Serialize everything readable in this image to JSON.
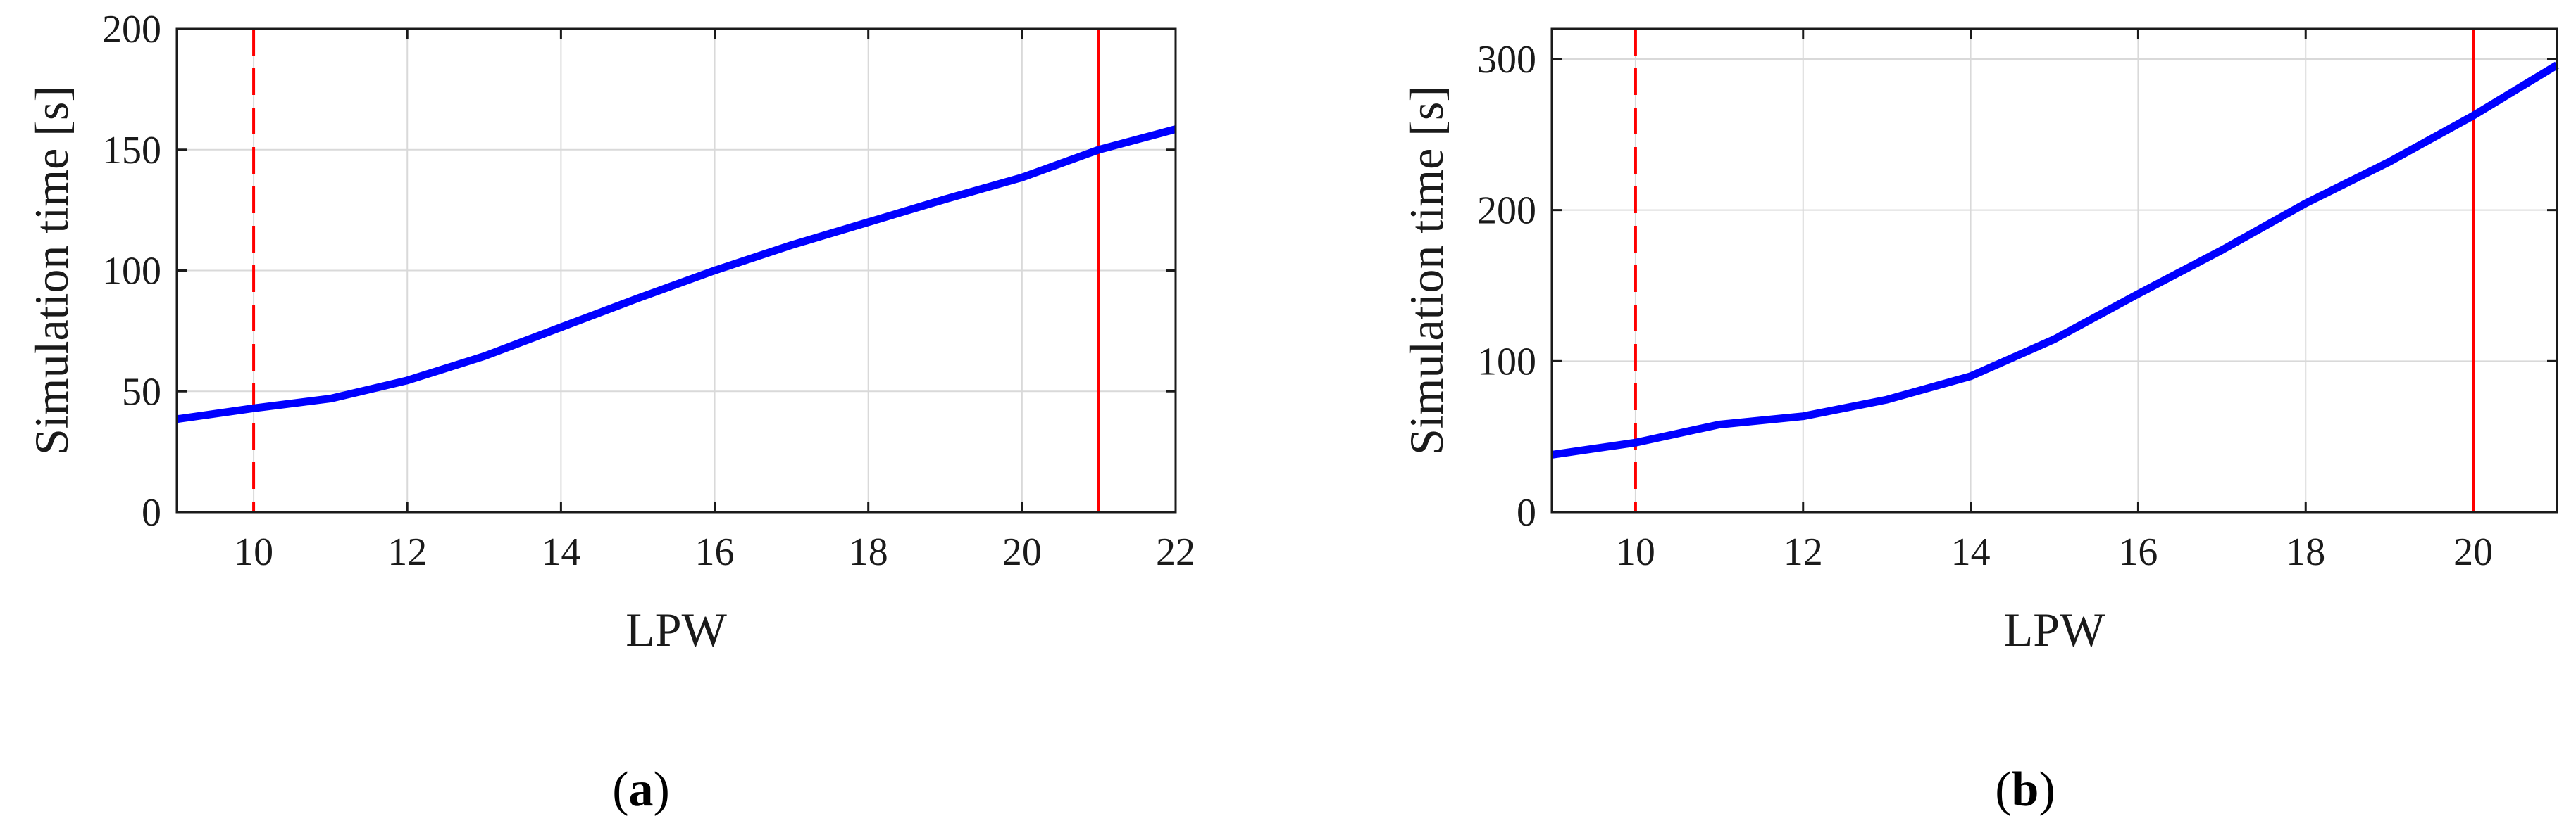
{
  "chart_data": [
    {
      "type": "line",
      "panel_label": "a",
      "xlabel": "LPW",
      "ylabel": "Simulation time [s]",
      "xlim": [
        9,
        22
      ],
      "ylim": [
        0,
        200
      ],
      "xticks": [
        10,
        12,
        14,
        16,
        18,
        20,
        22
      ],
      "yticks": [
        0,
        50,
        100,
        150,
        200
      ],
      "grid": true,
      "series": [
        {
          "color": "#0000ff",
          "x": [
            9,
            10,
            11,
            12,
            13,
            14,
            15,
            16,
            17,
            18,
            19,
            20,
            21,
            22
          ],
          "y": [
            38.5,
            43,
            47,
            54.5,
            64.5,
            76.5,
            88.5,
            100,
            110.5,
            120,
            129.5,
            138.5,
            150,
            158.5
          ]
        }
      ],
      "vlines": [
        {
          "x": 10,
          "style": "dashed",
          "color": "#ff0000"
        },
        {
          "x": 21,
          "style": "solid",
          "color": "#ff0000"
        }
      ]
    },
    {
      "type": "line",
      "panel_label": "b",
      "xlabel": "LPW",
      "ylabel": "Simulation time [s]",
      "xlim": [
        9,
        21
      ],
      "ylim": [
        0,
        320
      ],
      "xticks": [
        10,
        12,
        14,
        16,
        18,
        20
      ],
      "yticks": [
        0,
        100,
        200,
        300
      ],
      "grid": true,
      "series": [
        {
          "color": "#0000ff",
          "x": [
            9,
            10,
            11,
            12,
            13,
            14,
            15,
            16,
            17,
            18,
            19,
            20,
            21
          ],
          "y": [
            38,
            46,
            58,
            63.5,
            74.5,
            90,
            114.5,
            144.5,
            173.5,
            204.5,
            232,
            262.5,
            296
          ]
        }
      ],
      "vlines": [
        {
          "x": 10,
          "style": "dashed",
          "color": "#ff0000"
        },
        {
          "x": 20,
          "style": "solid",
          "color": "#ff0000"
        }
      ]
    }
  ]
}
